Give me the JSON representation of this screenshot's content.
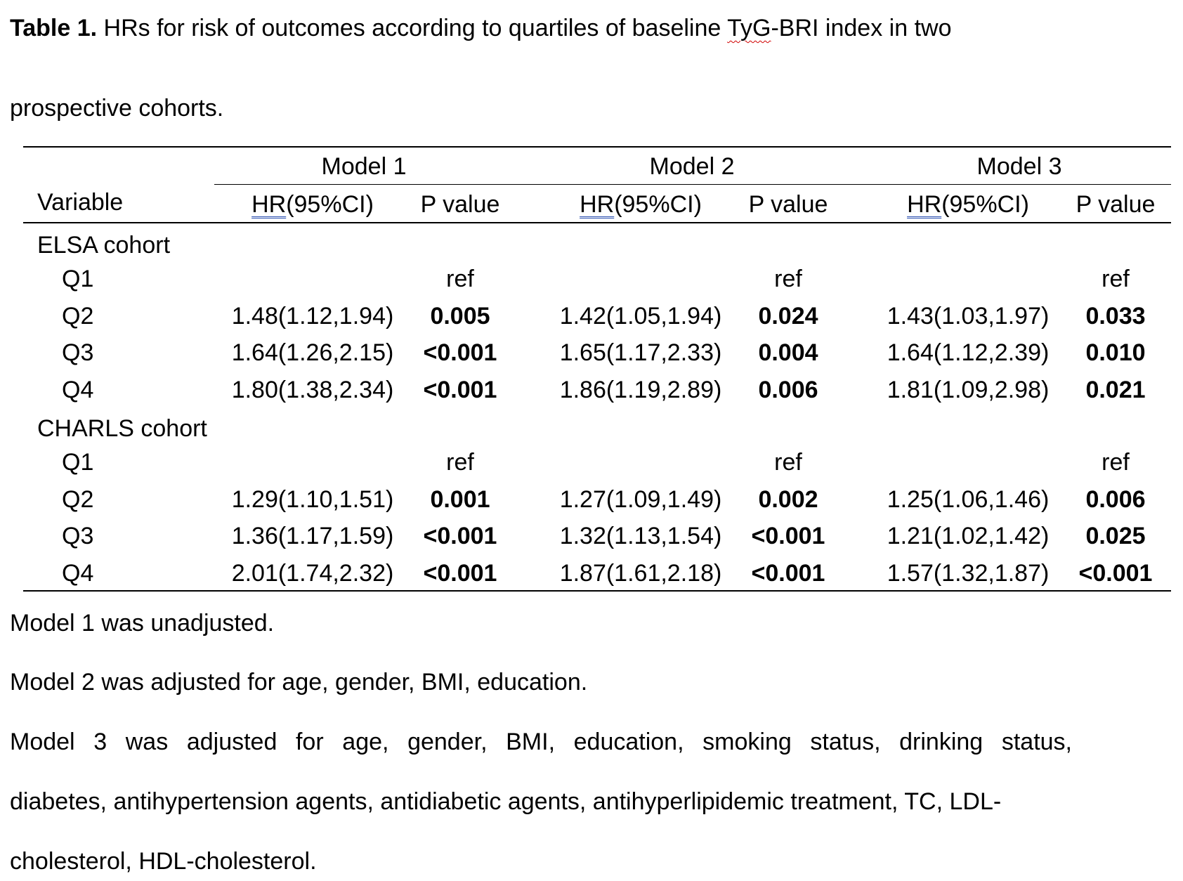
{
  "caption": {
    "label": "Table 1.",
    "text_before": "HRs for risk of outcomes according to quartiles of baseline",
    "index_name": "TyG",
    "text_after": "-BRI index in two",
    "line2": "prospective cohorts."
  },
  "header": {
    "variable": "Variable",
    "models": [
      "Model 1",
      "Model 2",
      "Model 3"
    ],
    "hr_prefix": "HR",
    "hr_suffix": "(95%CI)",
    "p_label": "P value"
  },
  "groups": [
    {
      "name": "ELSA cohort",
      "rows": [
        {
          "q": "Q1",
          "cells": [
            {
              "hr": "",
              "p": "ref",
              "bold": false
            },
            {
              "hr": "",
              "p": "ref",
              "bold": false
            },
            {
              "hr": "",
              "p": "ref",
              "bold": false
            }
          ]
        },
        {
          "q": "Q2",
          "cells": [
            {
              "hr": "1.48(1.12,1.94)",
              "p": "0.005",
              "bold": true
            },
            {
              "hr": "1.42(1.05,1.94)",
              "p": "0.024",
              "bold": true
            },
            {
              "hr": "1.43(1.03,1.97)",
              "p": "0.033",
              "bold": true
            }
          ]
        },
        {
          "q": "Q3",
          "cells": [
            {
              "hr": "1.64(1.26,2.15)",
              "p": "<0.001",
              "bold": true
            },
            {
              "hr": "1.65(1.17,2.33)",
              "p": "0.004",
              "bold": true
            },
            {
              "hr": "1.64(1.12,2.39)",
              "p": "0.010",
              "bold": true
            }
          ]
        },
        {
          "q": "Q4",
          "cells": [
            {
              "hr": "1.80(1.38,2.34)",
              "p": "<0.001",
              "bold": true
            },
            {
              "hr": "1.86(1.19,2.89)",
              "p": "0.006",
              "bold": true
            },
            {
              "hr": "1.81(1.09,2.98)",
              "p": "0.021",
              "bold": true
            }
          ]
        }
      ]
    },
    {
      "name": "CHARLS cohort",
      "rows": [
        {
          "q": "Q1",
          "cells": [
            {
              "hr": "",
              "p": "ref",
              "bold": false
            },
            {
              "hr": "",
              "p": "ref",
              "bold": false
            },
            {
              "hr": "",
              "p": "ref",
              "bold": false
            }
          ]
        },
        {
          "q": "Q2",
          "cells": [
            {
              "hr": "1.29(1.10,1.51)",
              "p": "0.001",
              "bold": true
            },
            {
              "hr": "1.27(1.09,1.49)",
              "p": "0.002",
              "bold": true
            },
            {
              "hr": "1.25(1.06,1.46)",
              "p": "0.006",
              "bold": true
            }
          ]
        },
        {
          "q": "Q3",
          "cells": [
            {
              "hr": "1.36(1.17,1.59)",
              "p": "<0.001",
              "bold": true
            },
            {
              "hr": "1.32(1.13,1.54)",
              "p": "<0.001",
              "bold": true
            },
            {
              "hr": "1.21(1.02,1.42)",
              "p": "0.025",
              "bold": true
            }
          ]
        },
        {
          "q": "Q4",
          "cells": [
            {
              "hr": "2.01(1.74,2.32)",
              "p": "<0.001",
              "bold": true
            },
            {
              "hr": "1.87(1.61,2.18)",
              "p": "<0.001",
              "bold": true
            },
            {
              "hr": "1.57(1.32,1.87)",
              "p": "<0.001",
              "bold": true
            }
          ]
        }
      ]
    }
  ],
  "notes": {
    "model1": "Model 1 was unadjusted.",
    "model2": "Model 2 was adjusted for age, gender, BMI, education.",
    "model3_line1": "Model 3 was adjusted for age, gender, BMI, education, smoking status, drinking status,",
    "model3_line2": "diabetes, antihypertension agents, antidiabetic agents, antihyperlipidemic treatment, TC, LDL-",
    "model3_line3": "cholesterol, HDL-cholesterol."
  }
}
